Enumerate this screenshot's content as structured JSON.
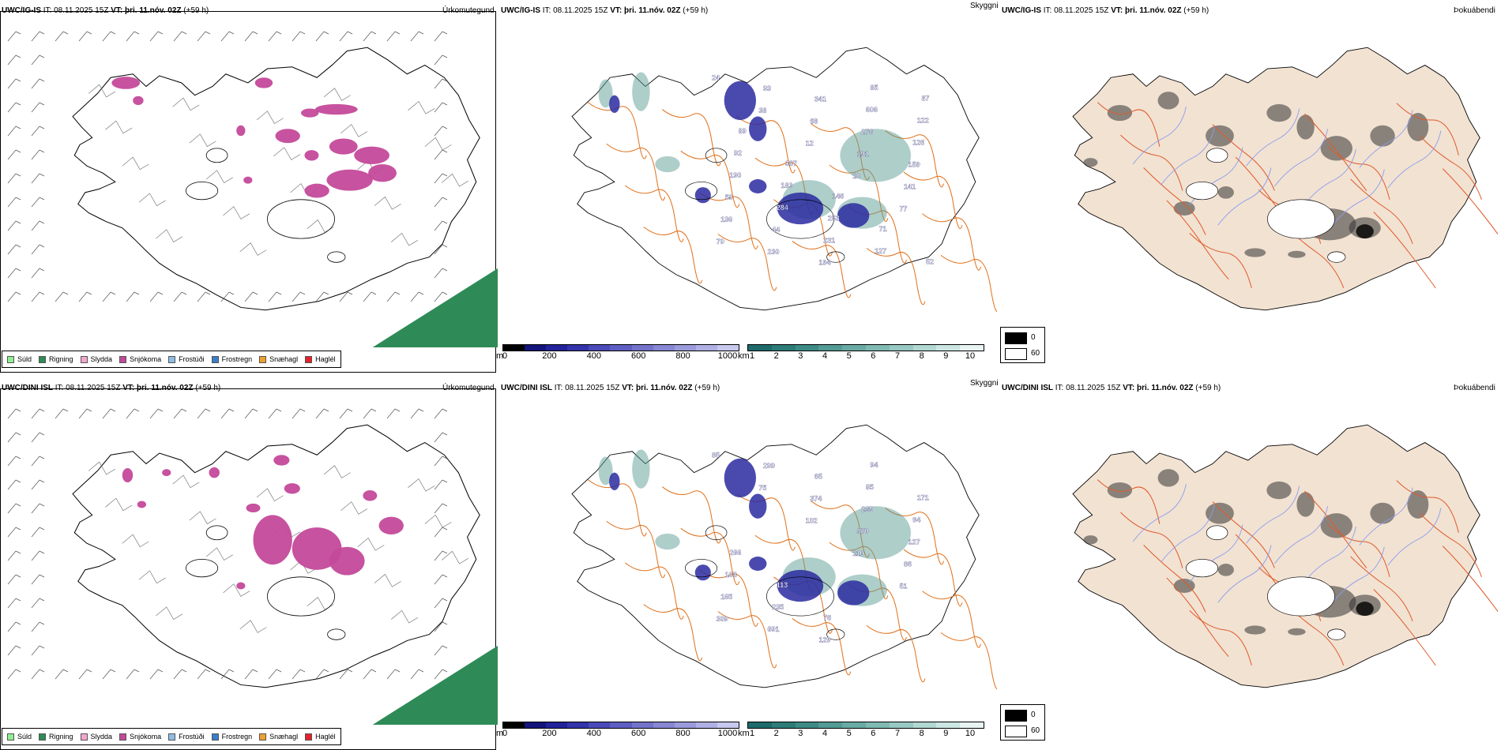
{
  "rows": [
    {
      "model": "UWC/IG-IS",
      "run_time": "IT: 08.11.2025 15Z",
      "valid_label": "VT:",
      "valid_time": "þri. 11.nóv. 02Z",
      "lead": "(+59 h)",
      "precip_values": [],
      "cloud_values": [
        "24",
        "38",
        "12",
        "10",
        "77",
        "70",
        "93",
        "68",
        "191",
        "141",
        "136",
        "230",
        "341",
        "276",
        "159",
        "59",
        "44",
        "194",
        "606",
        "126",
        "190",
        "284",
        "231",
        "85",
        "122",
        "92",
        "183",
        "253",
        "127",
        "87",
        "89",
        "387",
        "146",
        "71",
        "52"
      ],
      "vis_values": []
    },
    {
      "model": "UWC/DINI ISL",
      "run_time": "IT: 08.11.2025 15Z",
      "valid_label": "VT:",
      "valid_time": "þri. 11.nóv. 02Z",
      "lead": "(+59 h)",
      "precip_values": [],
      "cloud_values": [
        "85",
        "75",
        "102",
        "110",
        "51",
        "309",
        "299",
        "374",
        "370",
        "86",
        "165",
        "691",
        "65",
        "239",
        "127",
        "168",
        "235",
        "129",
        "85",
        "94",
        "266",
        "113",
        "76",
        "94",
        "171"
      ],
      "vis_values": []
    }
  ],
  "panels": {
    "precip_type": "Úrkomutegund",
    "cloud": "Skyggni",
    "vis": "Þokuábendi"
  },
  "precip_legend": [
    {
      "label": "Súld",
      "color": "#90ee90"
    },
    {
      "label": "Rigning",
      "color": "#2e8b57"
    },
    {
      "label": "Slydda",
      "color": "#f4a6cf"
    },
    {
      "label": "Snjókoma",
      "color": "#c4499a"
    },
    {
      "label": "Frostúði",
      "color": "#8fbce8"
    },
    {
      "label": "Frostregn",
      "color": "#3a7dc9"
    },
    {
      "label": "Snæhagl",
      "color": "#f0a030"
    },
    {
      "label": "Haglél",
      "color": "#e8202a"
    }
  ],
  "ceiling_bar": {
    "unit": "m",
    "ticks": [
      "0",
      "200",
      "400",
      "600",
      "800",
      "1000"
    ],
    "colors": [
      "#000000",
      "#14147a",
      "#22229a",
      "#3333aa",
      "#4a4ab8",
      "#5e5ec2",
      "#7373ca",
      "#8787d4",
      "#9b9bdc",
      "#b0b0e4",
      "#c8c8ee"
    ]
  },
  "vis_bar": {
    "unit": "km",
    "ticks": [
      "1",
      "2",
      "3",
      "4",
      "5",
      "6",
      "7",
      "8",
      "9",
      "10"
    ],
    "colors": [
      "#1f6b6b",
      "#2d7c78",
      "#3e8b86",
      "#539b95",
      "#69aba4",
      "#80bab3",
      "#98c9c2",
      "#b2d8d2",
      "#cce6e2",
      "#e8f4f2"
    ]
  },
  "fog_key": [
    {
      "label": "0",
      "color": "#000000"
    },
    {
      "label": "60",
      "color": "#ffffff"
    }
  ],
  "colors": {
    "snow": "#c4499a",
    "rain": "#2e8b57",
    "ceiling": "#2a2aa0",
    "vis": "#5e9d96",
    "roads": "#e0701a",
    "fog_land": "#f2e2d2",
    "fog_roads": "#e05a2a",
    "rivers": "#8a9cee"
  }
}
